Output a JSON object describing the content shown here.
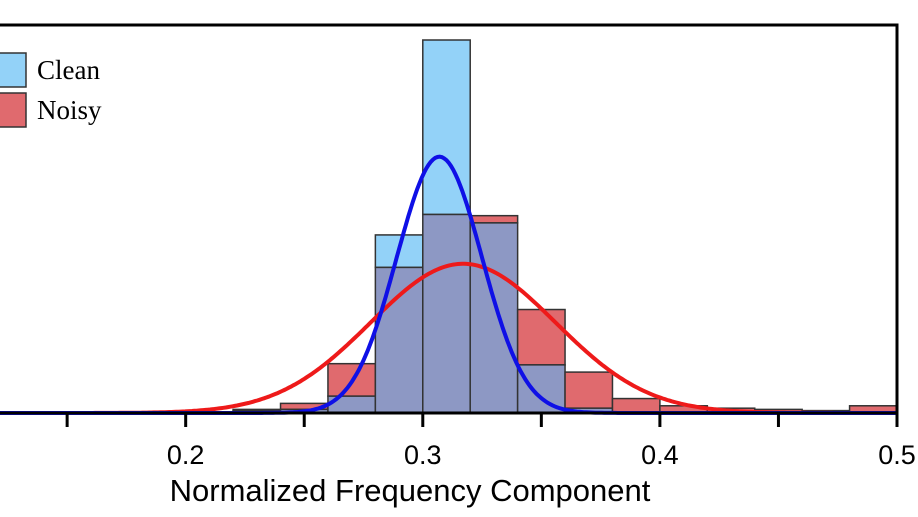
{
  "chart_data": {
    "type": "bar",
    "xlabel": "Normalized Frequency Component",
    "ylabel": "",
    "xlim": [
      0.12,
      0.5
    ],
    "ylim": [
      0,
      31
    ],
    "grid": false,
    "legend_position": "top-left",
    "x_ticks": [
      0.2,
      0.3,
      0.4,
      0.5
    ],
    "x_tick_labels": [
      "0.2",
      "0.3",
      "0.4",
      "0.5"
    ],
    "bin_width": 0.02,
    "colors": {
      "clean_fill": "#93d2f8",
      "noisy_fill": "#e06a6e",
      "overlap_fill": "#8d98c4",
      "clean_fit": "#0f10e6",
      "noisy_fit": "#ee1a1a"
    },
    "series": [
      {
        "name": "Clean",
        "bins": [
          {
            "x0": 0.22,
            "value": 0.3
          },
          {
            "x0": 0.24,
            "value": 0.3
          },
          {
            "x0": 0.26,
            "value": 1.4
          },
          {
            "x0": 0.28,
            "value": 14.8
          },
          {
            "x0": 0.3,
            "value": 31.0
          },
          {
            "x0": 0.32,
            "value": 15.8
          },
          {
            "x0": 0.34,
            "value": 4.0
          },
          {
            "x0": 0.36,
            "value": 0.4
          }
        ],
        "fit": {
          "mean": 0.307,
          "sd": 0.018,
          "peak": 21.3
        }
      },
      {
        "name": "Noisy",
        "bins": [
          {
            "x0": 0.16,
            "value": 0.1
          },
          {
            "x0": 0.18,
            "value": 0.1
          },
          {
            "x0": 0.2,
            "value": 0.1
          },
          {
            "x0": 0.22,
            "value": 0.2
          },
          {
            "x0": 0.24,
            "value": 0.8
          },
          {
            "x0": 0.26,
            "value": 4.1
          },
          {
            "x0": 0.28,
            "value": 12.1
          },
          {
            "x0": 0.3,
            "value": 16.5
          },
          {
            "x0": 0.32,
            "value": 16.4
          },
          {
            "x0": 0.34,
            "value": 8.6
          },
          {
            "x0": 0.36,
            "value": 3.4
          },
          {
            "x0": 0.38,
            "value": 1.2
          },
          {
            "x0": 0.4,
            "value": 0.6
          },
          {
            "x0": 0.42,
            "value": 0.4
          },
          {
            "x0": 0.44,
            "value": 0.3
          },
          {
            "x0": 0.46,
            "value": 0.2
          },
          {
            "x0": 0.48,
            "value": 0.6
          }
        ],
        "fit": {
          "mean": 0.317,
          "sd": 0.039,
          "peak": 12.4
        }
      }
    ]
  }
}
